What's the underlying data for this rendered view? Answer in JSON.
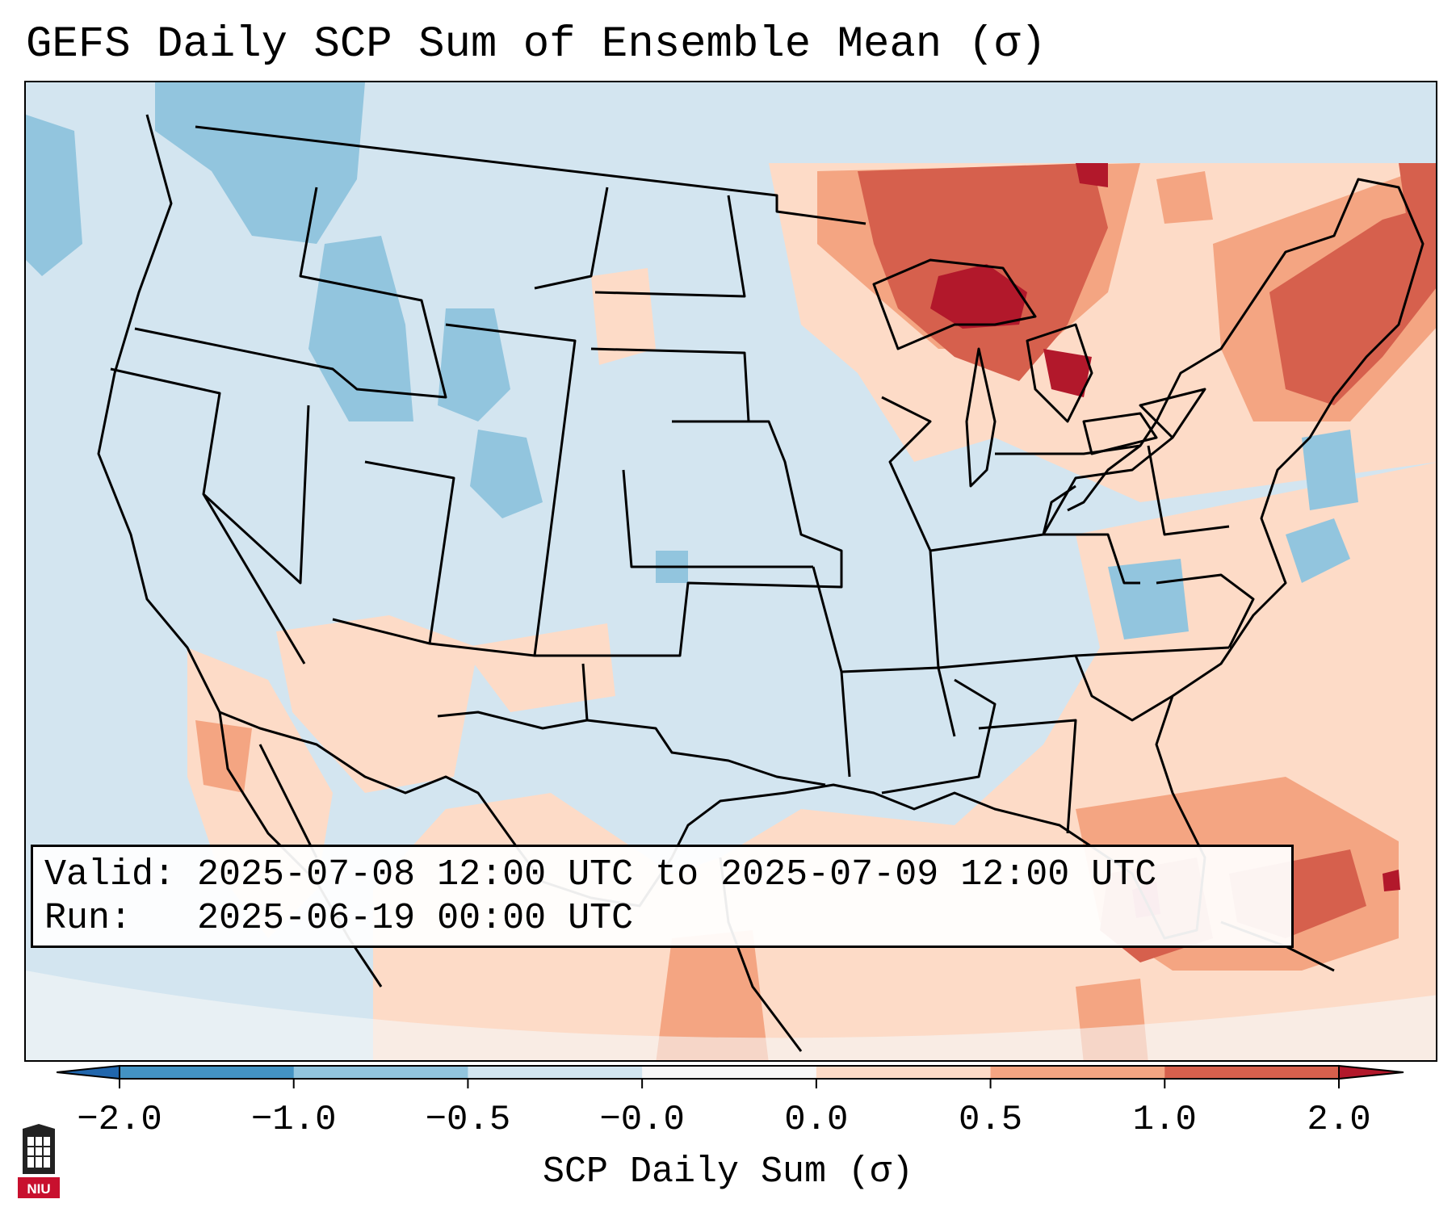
{
  "title": "GEFS Daily SCP Sum of Ensemble Mean (σ)",
  "info": {
    "valid_label": "Valid:",
    "valid_value": "2025-07-08 12:00 UTC to 2025-07-09 12:00 UTC",
    "run_label": "Run:",
    "run_value": "2025-06-19 00:00 UTC"
  },
  "colorbar": {
    "label": "SCP Daily Sum (σ)",
    "ticks": [
      "−2.0",
      "−1.0",
      "−0.5",
      "−0.0",
      "0.0",
      "0.5",
      "1.0",
      "2.0"
    ],
    "bins": [
      {
        "range": "< -2.0",
        "color": "#2166ac"
      },
      {
        "range": "-2.0 to -1.0",
        "color": "#4393c3"
      },
      {
        "range": "-1.0 to -0.5",
        "color": "#92c5de"
      },
      {
        "range": "-0.5 to -0.0",
        "color": "#d1e5f0"
      },
      {
        "range": "-0.0 to 0.0",
        "color": "#f7f7f7"
      },
      {
        "range": "0.0 to 0.5",
        "color": "#fddbc7"
      },
      {
        "range": "0.5 to 1.0",
        "color": "#f4a582"
      },
      {
        "range": "1.0 to 2.0",
        "color": "#d6604d"
      },
      {
        "range": "> 2.0",
        "color": "#b2182b"
      }
    ]
  },
  "logo": {
    "text": "NIU",
    "color": "#c8102e"
  }
}
